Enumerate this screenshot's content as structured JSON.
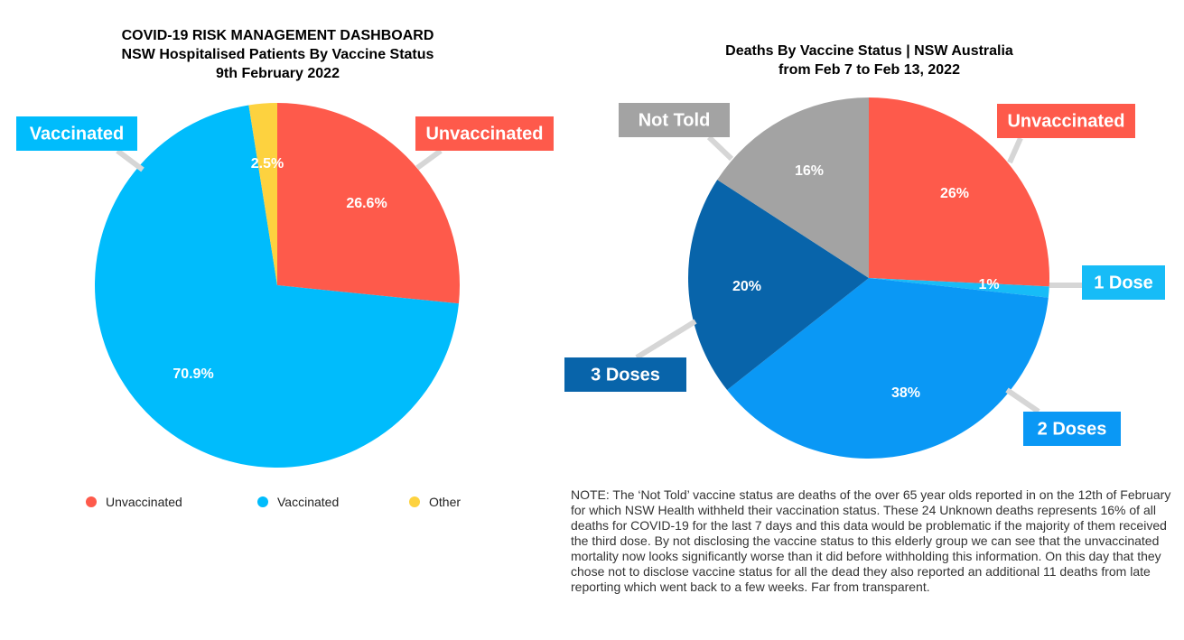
{
  "chart_data": [
    {
      "type": "pie",
      "title": "COVID-19 RISK MANAGEMENT DASHBOARD",
      "subtitle": "NSW Hospitalised Patients By Vaccine Status",
      "date": "9th February 2022",
      "slices": [
        {
          "label": "Unvaccinated",
          "value": 26.6,
          "display": "26.6%",
          "color": "#fe5a4b"
        },
        {
          "label": "Vaccinated",
          "value": 70.9,
          "display": "70.9%",
          "color": "#00bcfc"
        },
        {
          "label": "Other",
          "value": 2.5,
          "display": "2.5%",
          "color": "#fdd23f"
        }
      ],
      "callouts": [
        "Vaccinated",
        "Unvaccinated"
      ],
      "legend": {
        "placement": "bottom",
        "items": [
          "Unvaccinated",
          "Vaccinated",
          "Other"
        ]
      }
    },
    {
      "type": "pie",
      "title": "Deaths By Vaccine Status | NSW Australia",
      "subtitle": "from Feb 7 to Feb 13, 2022",
      "slices": [
        {
          "label": "Unvaccinated",
          "value": 26,
          "display": "26%",
          "color": "#fe5a4b"
        },
        {
          "label": "1 Dose",
          "value": 1,
          "display": "1%",
          "color": "#17bcf7"
        },
        {
          "label": "2 Doses",
          "value": 38,
          "display": "38%",
          "color": "#0a98f5"
        },
        {
          "label": "3 Doses",
          "value": 20,
          "display": "20%",
          "color": "#0864aa"
        },
        {
          "label": "Not Told",
          "value": 16,
          "display": "16%",
          "color": "#a3a3a3"
        }
      ],
      "callouts": [
        "Not Told",
        "Unvaccinated",
        "1 Dose",
        "3 Doses",
        "2 Doses"
      ]
    }
  ],
  "note": "NOTE: The ‘Not Told’ vaccine status are deaths of the over 65 year olds reported in on the 12th of February for which NSW Health withheld their vaccination status. These 24 Unknown deaths represents 16% of all deaths for COVID-19 for the last 7 days and this data would be problematic if the majority of them received the third dose. By not disclosing the vaccine status to this elderly group we can see that the unvaccinated mortality now looks significantly worse than it did before withholding this information. On this day that they chose not to disclose vaccine status for all the dead they also reported an additional 11 deaths from late reporting which went back to a few weeks. Far from transparent."
}
